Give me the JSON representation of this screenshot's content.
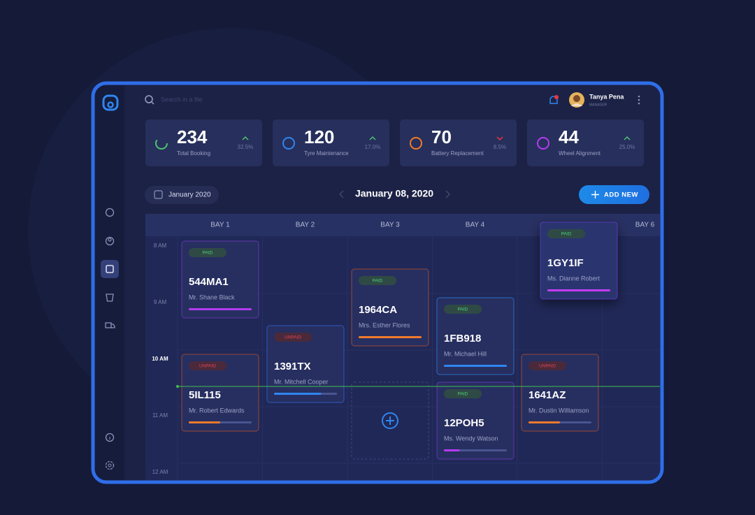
{
  "search_placeholder": "Search in a file",
  "user": {
    "name": "Tanya Pena",
    "role": "MANAGER"
  },
  "stats": [
    {
      "value": "234",
      "label": "Total Booking",
      "change": "32.5%"
    },
    {
      "value": "120",
      "label": "Tyre Maintenance",
      "change": "17.0%"
    },
    {
      "value": "70",
      "label": "Battery Replacement",
      "change": "8.5%"
    },
    {
      "value": "44",
      "label": "Wheel Alignment",
      "change": "25.0%"
    }
  ],
  "date_filter": "January 2020",
  "current_date": "January 08, 2020",
  "add_button": "ADD NEW",
  "bays": [
    "BAY 1",
    "BAY 2",
    "BAY 3",
    "BAY 4",
    null,
    "BAY 6"
  ],
  "times": [
    "8 AM",
    "9 AM",
    "10 AM",
    "11 AM",
    "12 AM"
  ],
  "bookings": [
    {
      "status": "PAID",
      "plate": "544MA1",
      "customer": "Mr. Shane Black"
    },
    {
      "status": "UNPAID",
      "plate": "1391TX",
      "customer": "Mr. Mitchell Cooper"
    },
    {
      "status": "PAID",
      "plate": "1964CA",
      "customer": "Mrs. Esther Flores"
    },
    {
      "status": "PAID",
      "plate": "1FB918",
      "customer": "Mr. Michael Hill"
    },
    {
      "status": "PAID",
      "plate": "1GY1IF",
      "customer": "Ms. Dianne Robert"
    },
    {
      "status": "UNPAID",
      "plate": "5IL115",
      "customer": "Mr. Robert Edwards"
    },
    {
      "status": "PAID",
      "plate": "12POH5",
      "customer": "Ms. Wendy Watson"
    },
    {
      "status": "UNPAID",
      "plate": "1641AZ",
      "customer": "Mr. Dustin Williamson"
    }
  ]
}
